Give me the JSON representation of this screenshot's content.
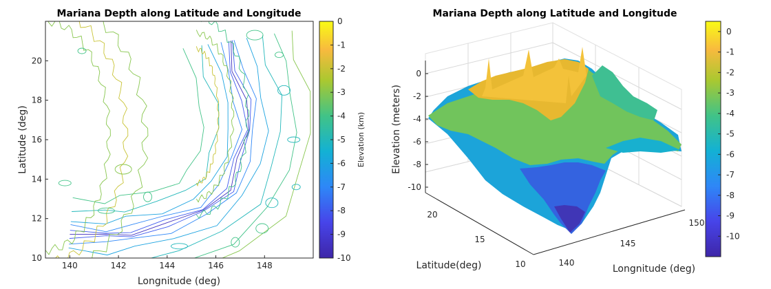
{
  "chart_data": [
    {
      "type": "contour",
      "title": "Mariana Depth along Latitude and Longitude",
      "xlabel": "Longnitude (deg)",
      "ylabel": "Latitude (deg)",
      "xlim": [
        139,
        150
      ],
      "ylim": [
        10,
        22
      ],
      "xticks": [
        "140",
        "142",
        "144",
        "146",
        "148"
      ],
      "yticks": [
        "10",
        "12",
        "14",
        "16",
        "18",
        "20"
      ],
      "colorbar": {
        "label": "Elevation (km)",
        "range": [
          -10,
          0
        ],
        "ticks": [
          "0",
          "-1",
          "-2",
          "-3",
          "-4",
          "-5",
          "-6",
          "-7",
          "-8",
          "-9",
          "-10"
        ]
      },
      "colormap": "parula",
      "trench_axis_km": [
        {
          "lon": 140.0,
          "lat": 11.2,
          "depth": -6
        },
        {
          "lon": 141.5,
          "lat": 11.1,
          "depth": -8
        },
        {
          "lon": 142.5,
          "lat": 11.3,
          "depth": -10
        },
        {
          "lon": 144.0,
          "lat": 11.7,
          "depth": -9
        },
        {
          "lon": 145.5,
          "lat": 12.4,
          "depth": -9
        },
        {
          "lon": 146.5,
          "lat": 13.5,
          "depth": -8
        },
        {
          "lon": 147.0,
          "lat": 15.0,
          "depth": -8
        },
        {
          "lon": 147.3,
          "lat": 16.5,
          "depth": -8
        },
        {
          "lon": 147.2,
          "lat": 18.0,
          "depth": -7
        },
        {
          "lon": 146.8,
          "lat": 19.5,
          "depth": -6
        },
        {
          "lon": 146.5,
          "lat": 21.0,
          "depth": -6
        }
      ]
    },
    {
      "type": "surface",
      "title": "Mariana Depth along Latitude and Longitude",
      "xlabel": "Longnitude (deg)",
      "ylabel": "Latitude(deg)",
      "zlabel": "Elevation (meters)",
      "xticks": [
        "140",
        "145",
        "150"
      ],
      "yticks": [
        "10",
        "15",
        "20"
      ],
      "zticks": [
        "0",
        "-2",
        "-4",
        "-6",
        "-8",
        "-10"
      ],
      "zlim": [
        -11,
        1
      ],
      "colorbar": {
        "range": [
          -11,
          0.5
        ],
        "ticks": [
          "0",
          "-1",
          "-2",
          "-3",
          "-4",
          "-5",
          "-6",
          "-7",
          "-8",
          "-9",
          "-10"
        ]
      },
      "colormap": "parula"
    }
  ]
}
